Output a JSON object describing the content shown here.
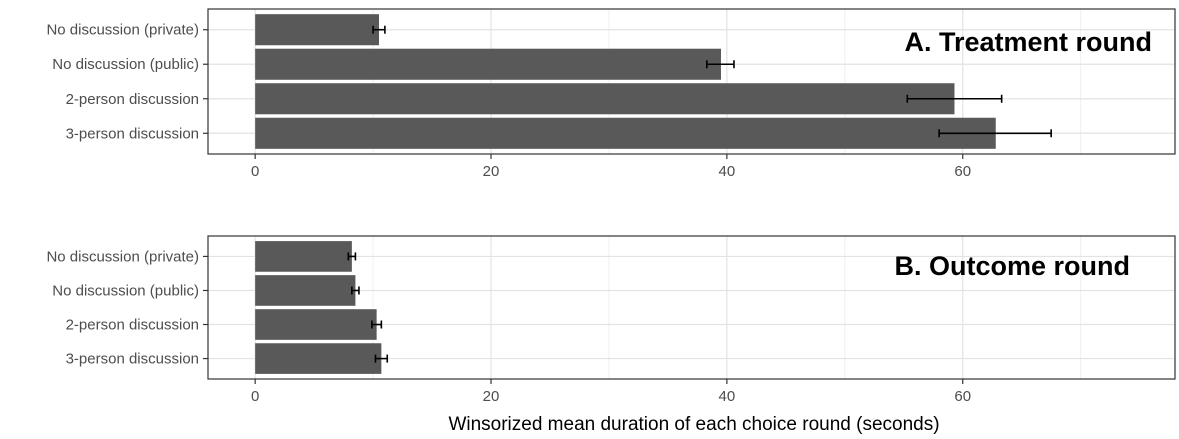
{
  "chart_data": [
    {
      "type": "bar",
      "orientation": "horizontal",
      "title": "A. Treatment round",
      "categories": [
        "No discussion (private)",
        "No discussion (public)",
        "2-person discussion",
        "3-person discussion"
      ],
      "values": [
        10.5,
        39.5,
        59.3,
        62.8
      ],
      "error_low": [
        10.0,
        38.3,
        55.3,
        58.0
      ],
      "error_high": [
        11.0,
        40.6,
        63.3,
        67.5
      ],
      "xlim": [
        -4,
        78
      ],
      "x_ticks": [
        0,
        20,
        40,
        60
      ],
      "x_tick_labels": [
        "0",
        "20",
        "40",
        "60"
      ],
      "grid": true,
      "bar_color": "#595959"
    },
    {
      "type": "bar",
      "orientation": "horizontal",
      "title": "B. Outcome round",
      "categories": [
        "No discussion (private)",
        "No discussion (public)",
        "2-person discussion",
        "3-person discussion"
      ],
      "values": [
        8.2,
        8.5,
        10.3,
        10.7
      ],
      "error_low": [
        7.9,
        8.2,
        9.9,
        10.2
      ],
      "error_high": [
        8.5,
        8.8,
        10.7,
        11.2
      ],
      "xlim": [
        -4,
        78
      ],
      "x_ticks": [
        0,
        20,
        40,
        60
      ],
      "x_tick_labels": [
        "0",
        "20",
        "40",
        "60"
      ],
      "grid": true,
      "bar_color": "#595959"
    }
  ],
  "xlabel": "Winsorized mean duration of each choice round (seconds)"
}
